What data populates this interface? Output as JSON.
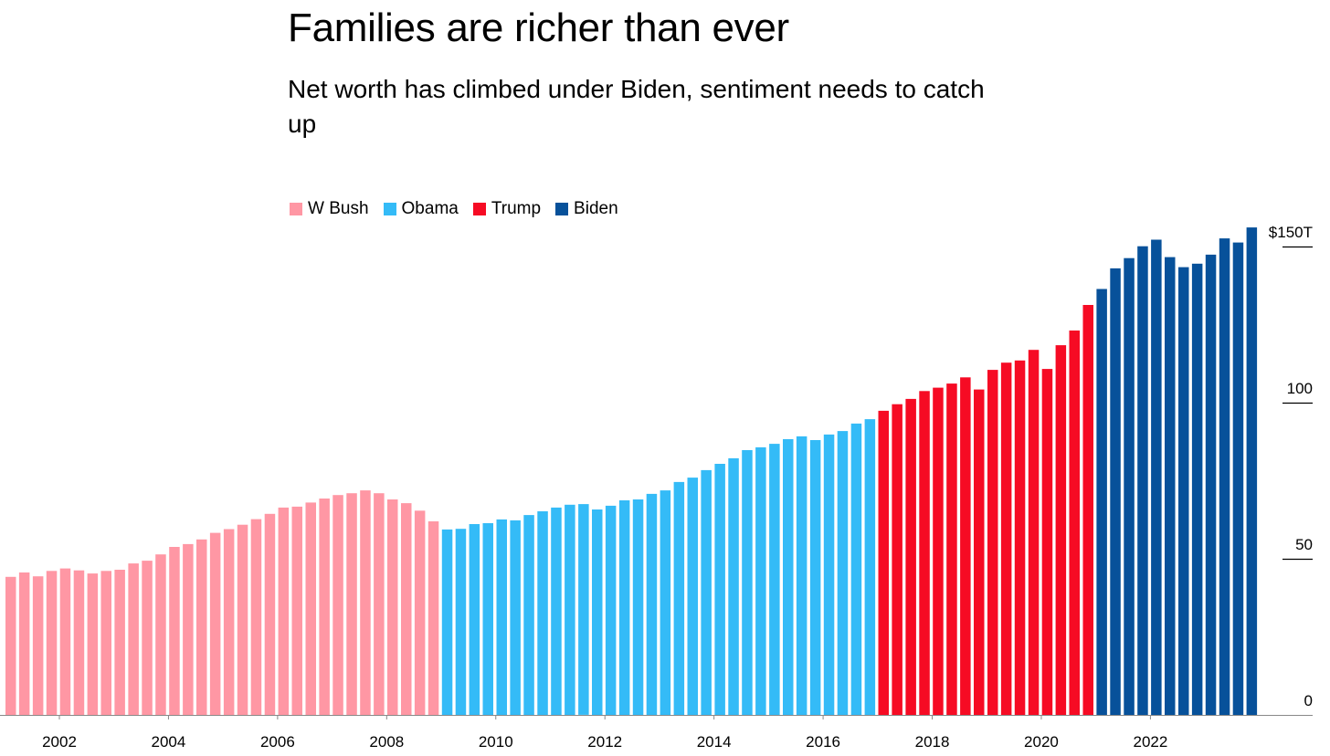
{
  "chart_data": {
    "type": "bar",
    "title": "Families are richer than ever",
    "subtitle": "Net worth has climbed under Biden, sentiment needs to catch up",
    "xlabel": "",
    "ylabel": "",
    "ylim": [
      0,
      160
    ],
    "y_ticks": [
      {
        "value": 0,
        "label": "0"
      },
      {
        "value": 50,
        "label": "50"
      },
      {
        "value": 100,
        "label": "100"
      },
      {
        "value": 150,
        "label": "$150T"
      }
    ],
    "x_ticks": [
      "2002",
      "2004",
      "2006",
      "2008",
      "2010",
      "2012",
      "2014",
      "2016",
      "2018",
      "2020",
      "2022"
    ],
    "grid": false,
    "legend_placement": "top-left",
    "start": "2001 Q1",
    "frequency": "quarterly",
    "series": [
      {
        "name": "W Bush",
        "color": "#ff97a4",
        "values": [
          44.2,
          45.6,
          44.4,
          46.1,
          46.9,
          46.3,
          45.3,
          46.1,
          46.5,
          48.5,
          49.4,
          51.4,
          53.8,
          54.7,
          56.2,
          58.3,
          59.5,
          60.9,
          62.7,
          64.4,
          66.4,
          66.7,
          68.0,
          69.3,
          70.4,
          71.0,
          71.9,
          71.0,
          69.0,
          67.8,
          65.4,
          62.0
        ]
      },
      {
        "name": "Obama",
        "color": "#34bbf7",
        "values": [
          59.4,
          59.6,
          61.1,
          61.4,
          62.6,
          62.3,
          64.0,
          65.2,
          66.4,
          67.3,
          67.5,
          65.8,
          67.0,
          68.7,
          69.0,
          70.8,
          71.9,
          74.6,
          76.0,
          78.4,
          80.4,
          82.2,
          84.8,
          85.7,
          86.8,
          88.3,
          89.2,
          88.0,
          89.8,
          90.9,
          93.3,
          94.7
        ]
      },
      {
        "name": "Trump",
        "color": "#f60b24",
        "values": [
          97.4,
          99.5,
          101.2,
          103.7,
          104.8,
          106.1,
          108.1,
          104.2,
          110.5,
          112.8,
          113.5,
          116.9,
          110.8,
          118.4,
          123.1,
          131.3
        ]
      },
      {
        "name": "Biden",
        "color": "#07519a",
        "values": [
          136.4,
          143.0,
          146.3,
          150.1,
          152.2,
          146.6,
          143.4,
          144.5,
          147.4,
          152.6,
          151.3,
          156.1
        ]
      }
    ]
  }
}
